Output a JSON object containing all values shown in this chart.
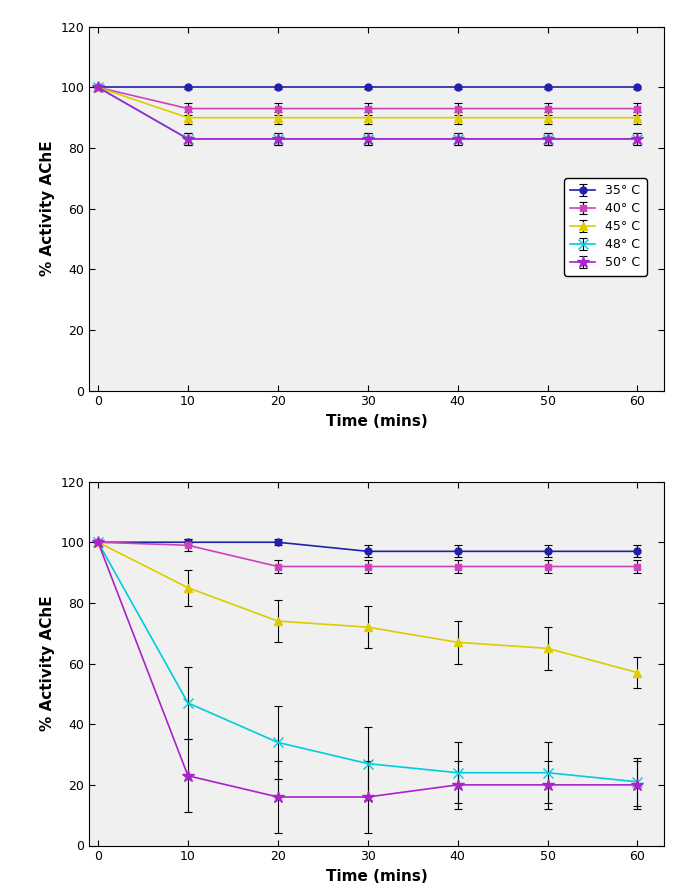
{
  "time": [
    0,
    10,
    20,
    30,
    40,
    50,
    60
  ],
  "top": {
    "35": {
      "y": [
        100,
        100,
        100,
        100,
        100,
        100,
        100
      ],
      "yerr": [
        0,
        0.5,
        0.5,
        0.5,
        0.5,
        0.5,
        0.5
      ]
    },
    "40": {
      "y": [
        100,
        93,
        93,
        93,
        93,
        93,
        93
      ],
      "yerr": [
        0,
        2,
        2,
        2,
        2,
        2,
        2
      ]
    },
    "45": {
      "y": [
        100,
        90,
        90,
        90,
        90,
        90,
        90
      ],
      "yerr": [
        0,
        2,
        2,
        2,
        2,
        2,
        2
      ]
    },
    "48": {
      "y": [
        100,
        83,
        83,
        83,
        83,
        83,
        83
      ],
      "yerr": [
        0,
        2,
        2,
        2,
        2,
        2,
        2
      ]
    },
    "50": {
      "y": [
        100,
        83,
        83,
        83,
        83,
        83,
        83
      ],
      "yerr": [
        0,
        2,
        2,
        2,
        2,
        2,
        2
      ]
    }
  },
  "bottom": {
    "35": {
      "y": [
        100,
        100,
        100,
        97,
        97,
        97,
        97
      ],
      "yerr": [
        0,
        1,
        1,
        2,
        2,
        2,
        2
      ]
    },
    "40": {
      "y": [
        100,
        99,
        92,
        92,
        92,
        92,
        92
      ],
      "yerr": [
        0,
        2,
        2,
        2,
        2,
        2,
        2
      ]
    },
    "45": {
      "y": [
        100,
        85,
        74,
        72,
        67,
        65,
        57
      ],
      "yerr": [
        0,
        6,
        7,
        7,
        7,
        7,
        5
      ]
    },
    "48": {
      "y": [
        100,
        47,
        34,
        27,
        24,
        24,
        21
      ],
      "yerr": [
        0,
        12,
        12,
        12,
        10,
        10,
        8
      ]
    },
    "50": {
      "y": [
        100,
        23,
        16,
        16,
        20,
        20,
        20
      ],
      "yerr": [
        0,
        12,
        12,
        12,
        8,
        8,
        8
      ]
    }
  },
  "colors": {
    "35": "#2020AA",
    "40": "#CC44BB",
    "45": "#DDCC00",
    "48": "#00CCDD",
    "50": "#AA22CC"
  },
  "markers": {
    "35": "o",
    "40": "s",
    "45": "^",
    "48": "x",
    "50": "*"
  },
  "labels": {
    "35": "35° C",
    "40": "40° C",
    "45": "45° C",
    "48": "48° C",
    "50": "50° C"
  },
  "ylabel": "% Activity AChE",
  "xlabel": "Time (mins)",
  "ylim": [
    0,
    120
  ],
  "yticks": [
    0,
    20,
    40,
    60,
    80,
    100,
    120
  ],
  "xticks": [
    0,
    10,
    20,
    30,
    40,
    50,
    60
  ],
  "background": "#f0f0f0",
  "fig_background": "#ffffff"
}
